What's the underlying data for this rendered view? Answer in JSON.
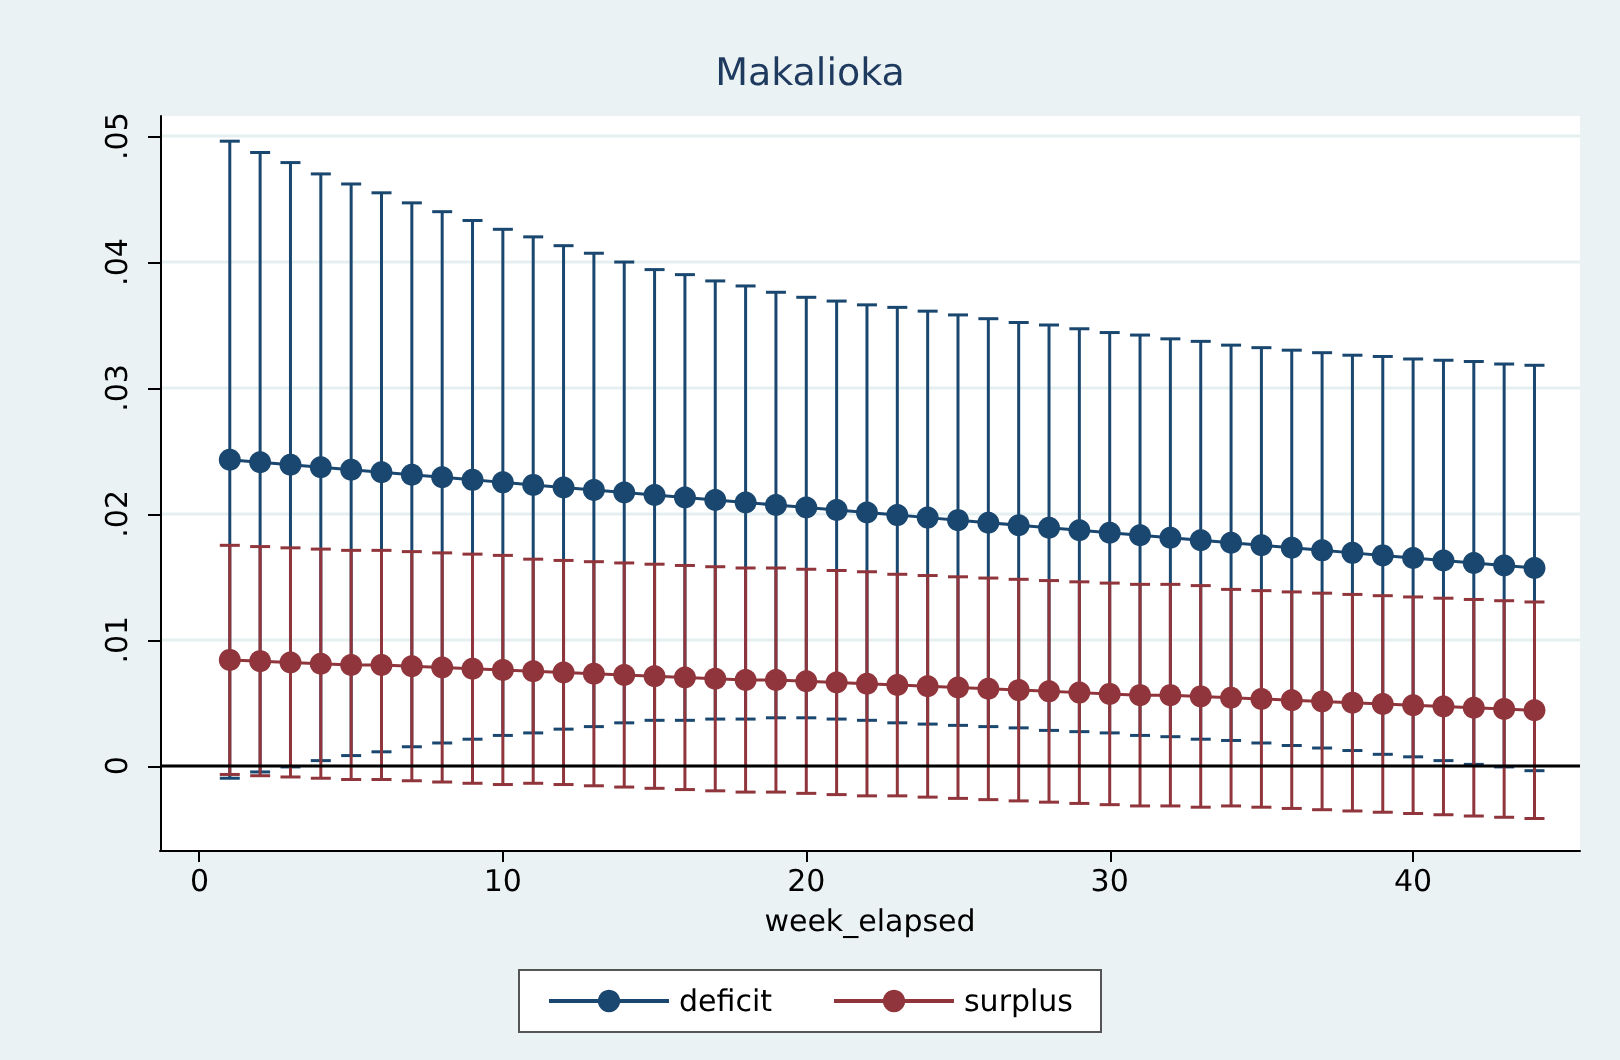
{
  "chart_data": {
    "type": "line",
    "title": "Makalioka",
    "xlabel": "week_elapsed",
    "x": [
      1,
      2,
      3,
      4,
      5,
      6,
      7,
      8,
      9,
      10,
      11,
      12,
      13,
      14,
      15,
      16,
      17,
      18,
      19,
      20,
      21,
      22,
      23,
      24,
      25,
      26,
      27,
      28,
      29,
      30,
      31,
      32,
      33,
      34,
      35,
      36,
      37,
      38,
      39,
      40,
      41,
      42,
      43,
      44
    ],
    "series": [
      {
        "name": "deficit",
        "color": "#1a476f",
        "values": [
          0.0243,
          0.0241,
          0.0239,
          0.0237,
          0.0235,
          0.0233,
          0.0231,
          0.0229,
          0.0227,
          0.0225,
          0.0223,
          0.0221,
          0.0219,
          0.0217,
          0.0215,
          0.0213,
          0.0211,
          0.0209,
          0.0207,
          0.0205,
          0.0203,
          0.0201,
          0.0199,
          0.0197,
          0.0195,
          0.0193,
          0.0191,
          0.0189,
          0.0187,
          0.0185,
          0.0183,
          0.0181,
          0.0179,
          0.0177,
          0.0175,
          0.0173,
          0.0171,
          0.0169,
          0.0167,
          0.0165,
          0.0163,
          0.0161,
          0.0159,
          0.0157
        ],
        "errors": [
          0.0253,
          0.0246,
          0.024,
          0.0233,
          0.0227,
          0.0222,
          0.0216,
          0.0211,
          0.0206,
          0.0201,
          0.0197,
          0.0192,
          0.0188,
          0.0183,
          0.0179,
          0.0177,
          0.0174,
          0.0172,
          0.0169,
          0.0167,
          0.0166,
          0.0165,
          0.0165,
          0.0164,
          0.0163,
          0.0162,
          0.0161,
          0.0161,
          0.016,
          0.0159,
          0.0159,
          0.0158,
          0.0158,
          0.0157,
          0.0157,
          0.0157,
          0.0157,
          0.0157,
          0.0158,
          0.0158,
          0.0159,
          0.016,
          0.016,
          0.0161
        ]
      },
      {
        "name": "surplus",
        "color": "#90353b",
        "values": [
          0.0084,
          0.0083,
          0.0082,
          0.0081,
          0.008,
          0.008,
          0.0079,
          0.0078,
          0.0077,
          0.0076,
          0.0075,
          0.0074,
          0.0073,
          0.0072,
          0.0071,
          0.007,
          0.0069,
          0.0068,
          0.0068,
          0.0067,
          0.0066,
          0.0065,
          0.0064,
          0.0063,
          0.0062,
          0.0061,
          0.006,
          0.0059,
          0.0058,
          0.0057,
          0.0056,
          0.0056,
          0.0055,
          0.0054,
          0.0053,
          0.0052,
          0.0051,
          0.005,
          0.0049,
          0.0048,
          0.0047,
          0.0046,
          0.0045,
          0.0044
        ],
        "errors": [
          0.0091,
          0.0091,
          0.0091,
          0.0091,
          0.0091,
          0.0091,
          0.0091,
          0.0091,
          0.0091,
          0.0091,
          0.0089,
          0.0089,
          0.0089,
          0.0089,
          0.0089,
          0.0089,
          0.0089,
          0.0089,
          0.0089,
          0.0089,
          0.0089,
          0.0089,
          0.0088,
          0.0088,
          0.0088,
          0.0088,
          0.0088,
          0.0088,
          0.0088,
          0.0088,
          0.0088,
          0.0088,
          0.0088,
          0.0086,
          0.0086,
          0.0086,
          0.0086,
          0.0086,
          0.0086,
          0.0086,
          0.0086,
          0.0086,
          0.0086,
          0.0086
        ]
      }
    ],
    "xlim": [
      -1.3,
      45.5
    ],
    "xticks": [
      0,
      10,
      20,
      30,
      40
    ],
    "ylim": [
      -0.0067,
      0.0516
    ],
    "yticks": [
      {
        "value": 0,
        "label": "0"
      },
      {
        "value": 0.01,
        "label": ".01"
      },
      {
        "value": 0.02,
        "label": ".02"
      },
      {
        "value": 0.03,
        "label": ".03"
      },
      {
        "value": 0.04,
        "label": ".04"
      },
      {
        "value": 0.05,
        "label": ".05"
      }
    ],
    "ref_lines": [
      {
        "axis": "y",
        "value": 0,
        "color": "#000000"
      }
    ],
    "grid": "y",
    "legend": "bottom",
    "marker": "circle",
    "line_style": "solid"
  }
}
